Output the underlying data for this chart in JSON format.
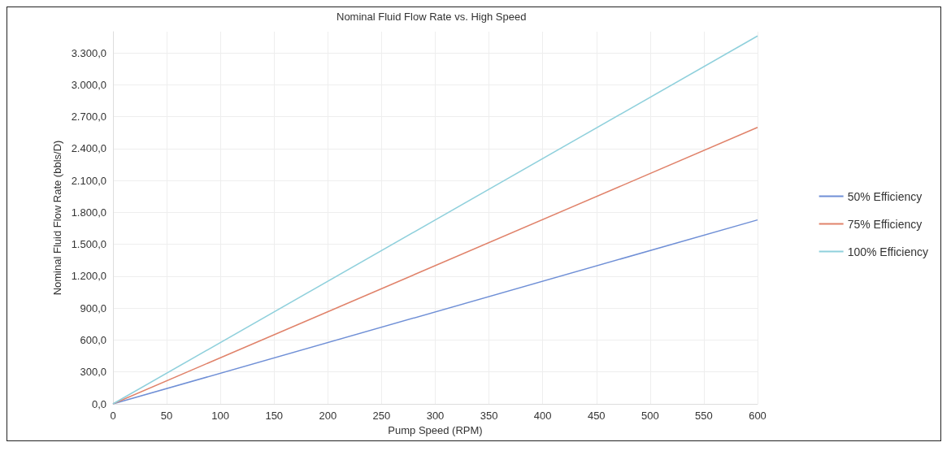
{
  "chart_data": {
    "type": "line",
    "title": "Nominal Fluid Flow Rate vs. High Speed",
    "xlabel": "Pump Speed (RPM)",
    "ylabel": "Nominal Fluid Flow Rate (bbls/D)",
    "x": [
      0,
      600
    ],
    "series": [
      {
        "name": "50% Efficiency",
        "color": "#6f8fd6",
        "values": [
          0,
          1730
        ]
      },
      {
        "name": "75% Efficiency",
        "color": "#e0826a",
        "values": [
          0,
          2600
        ]
      },
      {
        "name": "100% Efficiency",
        "color": "#8fd0dc",
        "values": [
          0,
          3460
        ]
      }
    ],
    "xlim": [
      0,
      600
    ],
    "xticks": [
      0,
      50,
      100,
      150,
      200,
      250,
      300,
      350,
      400,
      450,
      500,
      550,
      600
    ],
    "ylim": [
      0,
      3500
    ],
    "yticks": [
      {
        "value": 0,
        "label": "0,0"
      },
      {
        "value": 300,
        "label": "300,0"
      },
      {
        "value": 600,
        "label": "600,0"
      },
      {
        "value": 900,
        "label": "900,0"
      },
      {
        "value": 1200,
        "label": "1.200,0"
      },
      {
        "value": 1500,
        "label": "1.500,0"
      },
      {
        "value": 1800,
        "label": "1.800,0"
      },
      {
        "value": 2100,
        "label": "2.100,0"
      },
      {
        "value": 2400,
        "label": "2.400,0"
      },
      {
        "value": 2700,
        "label": "2.700,0"
      },
      {
        "value": 3000,
        "label": "3.000,0"
      },
      {
        "value": 3300,
        "label": "3.300,0"
      }
    ],
    "grid": true,
    "legend": "right",
    "marker": "none",
    "line_style": "solid"
  }
}
